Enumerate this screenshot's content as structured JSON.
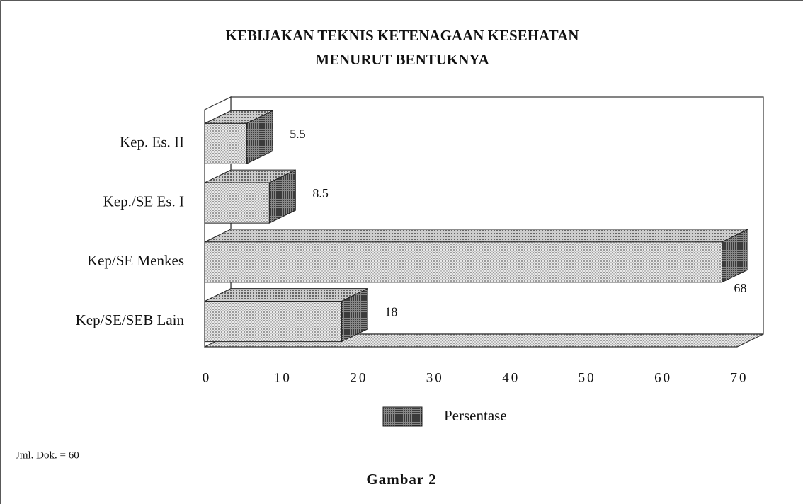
{
  "chart_data": {
    "type": "bar",
    "orientation": "horizontal",
    "three_d": true,
    "title": [
      "KEBIJAKAN TEKNIS KETENAGAAN KESEHATAN",
      "MENURUT BENTUKNYA"
    ],
    "categories": [
      "Kep. Es. II",
      "Kep./SE Es. I",
      "Kep/SE Menkes",
      "Kep/SE/SEB Lain"
    ],
    "series": [
      {
        "name": "Persentase",
        "color": "#9a9a9a",
        "values": [
          5.5,
          8.5,
          68,
          18
        ]
      }
    ],
    "xlim": [
      0,
      70
    ],
    "xticks": [
      0,
      10,
      20,
      30,
      40,
      50,
      60,
      70
    ],
    "annotations": [
      "Jml. Dok. = 60",
      "Gambar 2"
    ]
  }
}
